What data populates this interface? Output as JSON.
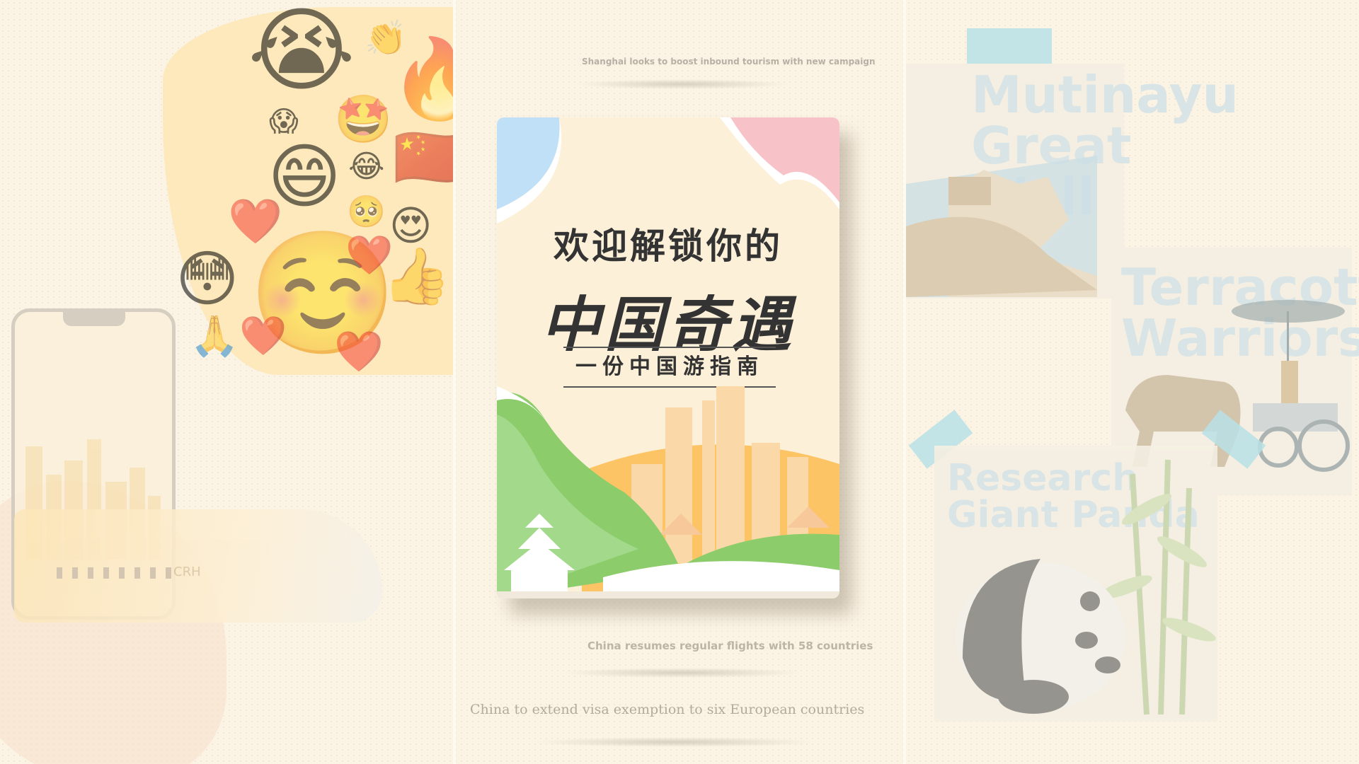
{
  "captions": {
    "top": "Shanghai looks to boost inbound tourism with new campaign",
    "middle": "China resumes regular flights with 58 countries",
    "bottom": "China to extend visa exemption to six European countries"
  },
  "book": {
    "title_line1": "欢迎解锁你的",
    "title_line2": "中国奇遇",
    "subtitle": "一份中国游指南"
  },
  "left": {
    "emojis": [
      "😭",
      "👏",
      "🔥",
      "😱",
      "🤩",
      "🇨🇳",
      "😄",
      "😂",
      "🥺",
      "😍",
      "❤️",
      "😳",
      "☺️",
      "❤️",
      "👍",
      "🙏",
      "❤️",
      "❤️"
    ],
    "train_label": "CRH"
  },
  "right": {
    "cards": [
      {
        "name": "great-wall-card",
        "lines": [
          "Mutinayu",
          "Great",
          "Wall"
        ]
      },
      {
        "name": "terracotta-card",
        "lines": [
          "Terracotta",
          "Warriors"
        ]
      },
      {
        "name": "panda-card",
        "lines": [
          "Research",
          "Giant Panda"
        ]
      }
    ]
  },
  "colors": {
    "background": "#fbf3e4",
    "accent_blue": "#bfe0f7",
    "accent_pink": "#f8c3c8",
    "accent_green": "#8ccc6a",
    "accent_orange": "#fcc464"
  }
}
